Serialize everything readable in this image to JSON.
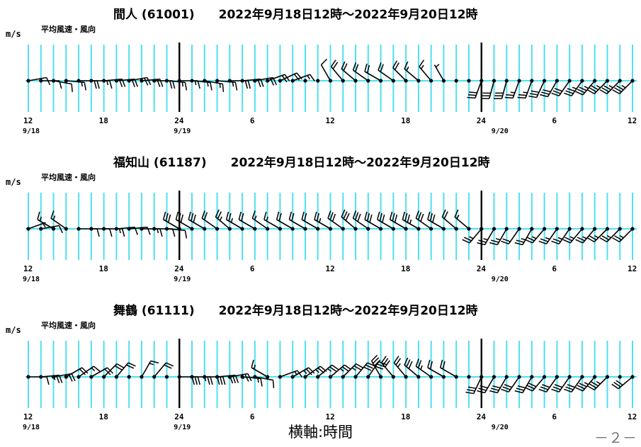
{
  "footer": {
    "caption": "横軸:時間",
    "page": "－２－"
  },
  "chart_data": [
    {
      "type": "wind-barb time series",
      "station_title": "間人 (61001)",
      "period": "2022年9月18日12時〜2022年9月20日12時",
      "subtitle": "平均風速・風向",
      "unit": "m/s",
      "x_ticks": [
        {
          "hour": 0,
          "label": "12",
          "date": "9/18"
        },
        {
          "hour": 6,
          "label": "18",
          "date": ""
        },
        {
          "hour": 12,
          "label": "24",
          "date": "9/19"
        },
        {
          "hour": 18,
          "label": "6",
          "date": ""
        },
        {
          "hour": 24,
          "label": "12",
          "date": ""
        },
        {
          "hour": 30,
          "label": "18",
          "date": ""
        },
        {
          "hour": 36,
          "label": "24",
          "date": "9/20"
        },
        {
          "hour": 42,
          "label": "6",
          "date": ""
        },
        {
          "hour": 48,
          "label": "12",
          "date": ""
        }
      ],
      "day_boundaries_hour": [
        12,
        36
      ],
      "hourly_grid": true,
      "observations": {
        "direction_deg": [
          80,
          90,
          100,
          95,
          90,
          90,
          85,
          85,
          80,
          85,
          90,
          95,
          90,
          95,
          100,
          95,
          90,
          85,
          80,
          70,
          65,
          70,
          0,
          0,
          330,
          320,
          310,
          305,
          300,
          305,
          315,
          310,
          320,
          330,
          0,
          0,
          200,
          195,
          195,
          200,
          200,
          205,
          210,
          215,
          215,
          220,
          225,
          225,
          225
        ],
        "speed_ms": [
          4,
          5,
          4,
          8,
          9,
          8,
          10,
          10,
          9,
          10,
          9,
          8,
          8,
          7,
          7,
          8,
          9,
          9,
          10,
          10,
          10,
          8,
          0,
          0,
          6,
          9,
          10,
          10,
          9,
          10,
          9,
          8,
          7,
          3,
          0,
          0,
          14,
          16,
          14,
          12,
          12,
          14,
          16,
          16,
          17,
          17,
          18,
          18,
          18
        ]
      }
    },
    {
      "type": "wind-barb time series",
      "station_title": "福知山 (61187)",
      "period": "2022年9月18日12時〜2022年9月20日12時",
      "subtitle": "平均風速・風向",
      "unit": "m/s",
      "x_ticks": [
        {
          "hour": 0,
          "label": "12",
          "date": "9/18"
        },
        {
          "hour": 6,
          "label": "18",
          "date": ""
        },
        {
          "hour": 12,
          "label": "24",
          "date": "9/19"
        },
        {
          "hour": 18,
          "label": "6",
          "date": ""
        },
        {
          "hour": 24,
          "label": "12",
          "date": ""
        },
        {
          "hour": 30,
          "label": "18",
          "date": ""
        },
        {
          "hour": 36,
          "label": "24",
          "date": "9/20"
        },
        {
          "hour": 42,
          "label": "6",
          "date": ""
        },
        {
          "hour": 48,
          "label": "12",
          "date": ""
        }
      ],
      "day_boundaries_hour": [
        12,
        36
      ],
      "hourly_grid": true,
      "observations": {
        "direction_deg": [
          70,
          80,
          300,
          305,
          90,
          90,
          90,
          85,
          85,
          90,
          90,
          95,
          300,
          300,
          300,
          305,
          310,
          300,
          300,
          305,
          300,
          300,
          300,
          300,
          300,
          305,
          310,
          305,
          300,
          300,
          300,
          300,
          305,
          300,
          310,
          310,
          220,
          210,
          210,
          215,
          210,
          220,
          215,
          215,
          220,
          220,
          225,
          225,
          225
        ],
        "speed_ms": [
          3,
          6,
          8,
          7,
          4,
          5,
          7,
          6,
          6,
          7,
          6,
          5,
          14,
          16,
          16,
          10,
          12,
          12,
          10,
          8,
          8,
          9,
          11,
          10,
          12,
          14,
          16,
          16,
          15,
          16,
          16,
          17,
          15,
          14,
          10,
          8,
          12,
          12,
          12,
          11,
          12,
          12,
          13,
          12,
          12,
          12,
          12,
          12,
          12
        ]
      }
    },
    {
      "type": "wind-barb time series",
      "station_title": "舞鶴 (61111)",
      "period": "2022年9月18日12時〜2022年9月20日12時",
      "subtitle": "平均風速・風向",
      "unit": "m/s",
      "x_ticks": [
        {
          "hour": 0,
          "label": "12",
          "date": "9/18"
        },
        {
          "hour": 6,
          "label": "18",
          "date": ""
        },
        {
          "hour": 12,
          "label": "24",
          "date": "9/19"
        },
        {
          "hour": 18,
          "label": "6",
          "date": ""
        },
        {
          "hour": 24,
          "label": "12",
          "date": ""
        },
        {
          "hour": 30,
          "label": "18",
          "date": ""
        },
        {
          "hour": 36,
          "label": "24",
          "date": "9/20"
        },
        {
          "hour": 42,
          "label": "6",
          "date": ""
        },
        {
          "hour": 48,
          "label": "12",
          "date": ""
        }
      ],
      "day_boundaries_hour": [
        12,
        36
      ],
      "hourly_grid": true,
      "observations": {
        "direction_deg": [
          90,
          85,
          80,
          60,
          55,
          60,
          45,
          40,
          0,
          30,
          40,
          0,
          90,
          90,
          90,
          85,
          80,
          95,
          100,
          300,
          70,
          60,
          55,
          50,
          50,
          45,
          40,
          35,
          330,
          320,
          320,
          310,
          305,
          300,
          300,
          0,
          205,
          210,
          210,
          215,
          210,
          220,
          215,
          215,
          215,
          220,
          225,
          0,
          230
        ],
        "speed_ms": [
          6,
          12,
          10,
          9,
          8,
          11,
          9,
          10,
          0,
          8,
          9,
          0,
          14,
          12,
          14,
          15,
          13,
          8,
          6,
          7,
          8,
          12,
          13,
          12,
          12,
          13,
          14,
          14,
          14,
          14,
          12,
          14,
          12,
          10,
          9,
          0,
          14,
          16,
          16,
          16,
          14,
          14,
          14,
          16,
          16,
          18,
          18,
          0,
          14
        ]
      }
    }
  ]
}
